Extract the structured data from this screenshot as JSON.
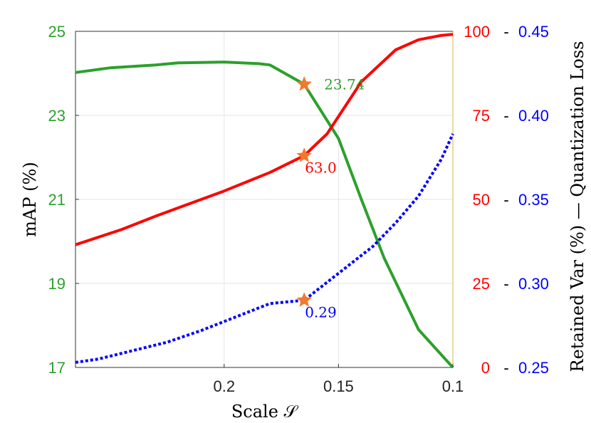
{
  "chart_data": {
    "type": "line",
    "xlabel": "Scale 𝒮",
    "ylabel_left": "mAP (%)",
    "ylabel_right": "Retained Var (%) — Quantization Loss",
    "x_reversed": true,
    "xlim": [
      0.265,
      0.1
    ],
    "x_ticks": [
      0.2,
      0.15,
      0.1
    ],
    "x_tick_labels": [
      "0.2",
      "0.15",
      "0.1"
    ],
    "ylim_left": [
      17,
      25
    ],
    "y_ticks_left": [
      17,
      19,
      21,
      23,
      25
    ],
    "ylim_right_var": [
      0,
      100
    ],
    "y_ticks_right_var": [
      0,
      25,
      50,
      75,
      100
    ],
    "ylim_right_loss": [
      0.25,
      0.45
    ],
    "y_ticks_right_loss": [
      "0.25",
      "0.30",
      "0.35",
      "0.40",
      "0.45"
    ],
    "right_tick_separator": "-",
    "grid": true,
    "colors": {
      "map": "#2ca02c",
      "var": "#ff0000",
      "loss": "#0000ff",
      "marker": "#f07a2e"
    },
    "series": [
      {
        "axis": "left",
        "style": "solid",
        "x": [
          0.265,
          0.25,
          0.23,
          0.22,
          0.2,
          0.185,
          0.18,
          0.165,
          0.15,
          0.14,
          0.13,
          0.115,
          0.1
        ],
        "y": [
          24.02,
          24.13,
          24.2,
          24.25,
          24.27,
          24.23,
          24.2,
          23.74,
          22.45,
          21.0,
          19.6,
          17.9,
          16.8
        ]
      },
      {
        "axis": "right_var",
        "style": "solid",
        "x": [
          0.265,
          0.245,
          0.23,
          0.2,
          0.18,
          0.165,
          0.155,
          0.14,
          0.125,
          0.115,
          0.105,
          0.1
        ],
        "y": [
          36.5,
          41,
          45,
          52.5,
          58,
          63.0,
          69.5,
          85,
          94.5,
          97.5,
          98.8,
          99.1
        ]
      },
      {
        "axis": "right_loss",
        "style": "dotted",
        "x": [
          0.265,
          0.255,
          0.24,
          0.225,
          0.21,
          0.195,
          0.18,
          0.165,
          0.15,
          0.135,
          0.125,
          0.115,
          0.105,
          0.1
        ],
        "y": [
          0.253,
          0.255,
          0.26,
          0.265,
          0.272,
          0.28,
          0.288,
          0.29,
          0.306,
          0.322,
          0.336,
          0.352,
          0.374,
          0.389
        ]
      }
    ],
    "annotations": [
      {
        "axis": "left",
        "x": 0.165,
        "y": 23.74,
        "label": "23.74"
      },
      {
        "axis": "right_var",
        "x": 0.165,
        "y": 63.0,
        "label": "63.0"
      },
      {
        "axis": "right_loss",
        "x": 0.165,
        "y": 0.29,
        "label": "0.29"
      }
    ]
  }
}
